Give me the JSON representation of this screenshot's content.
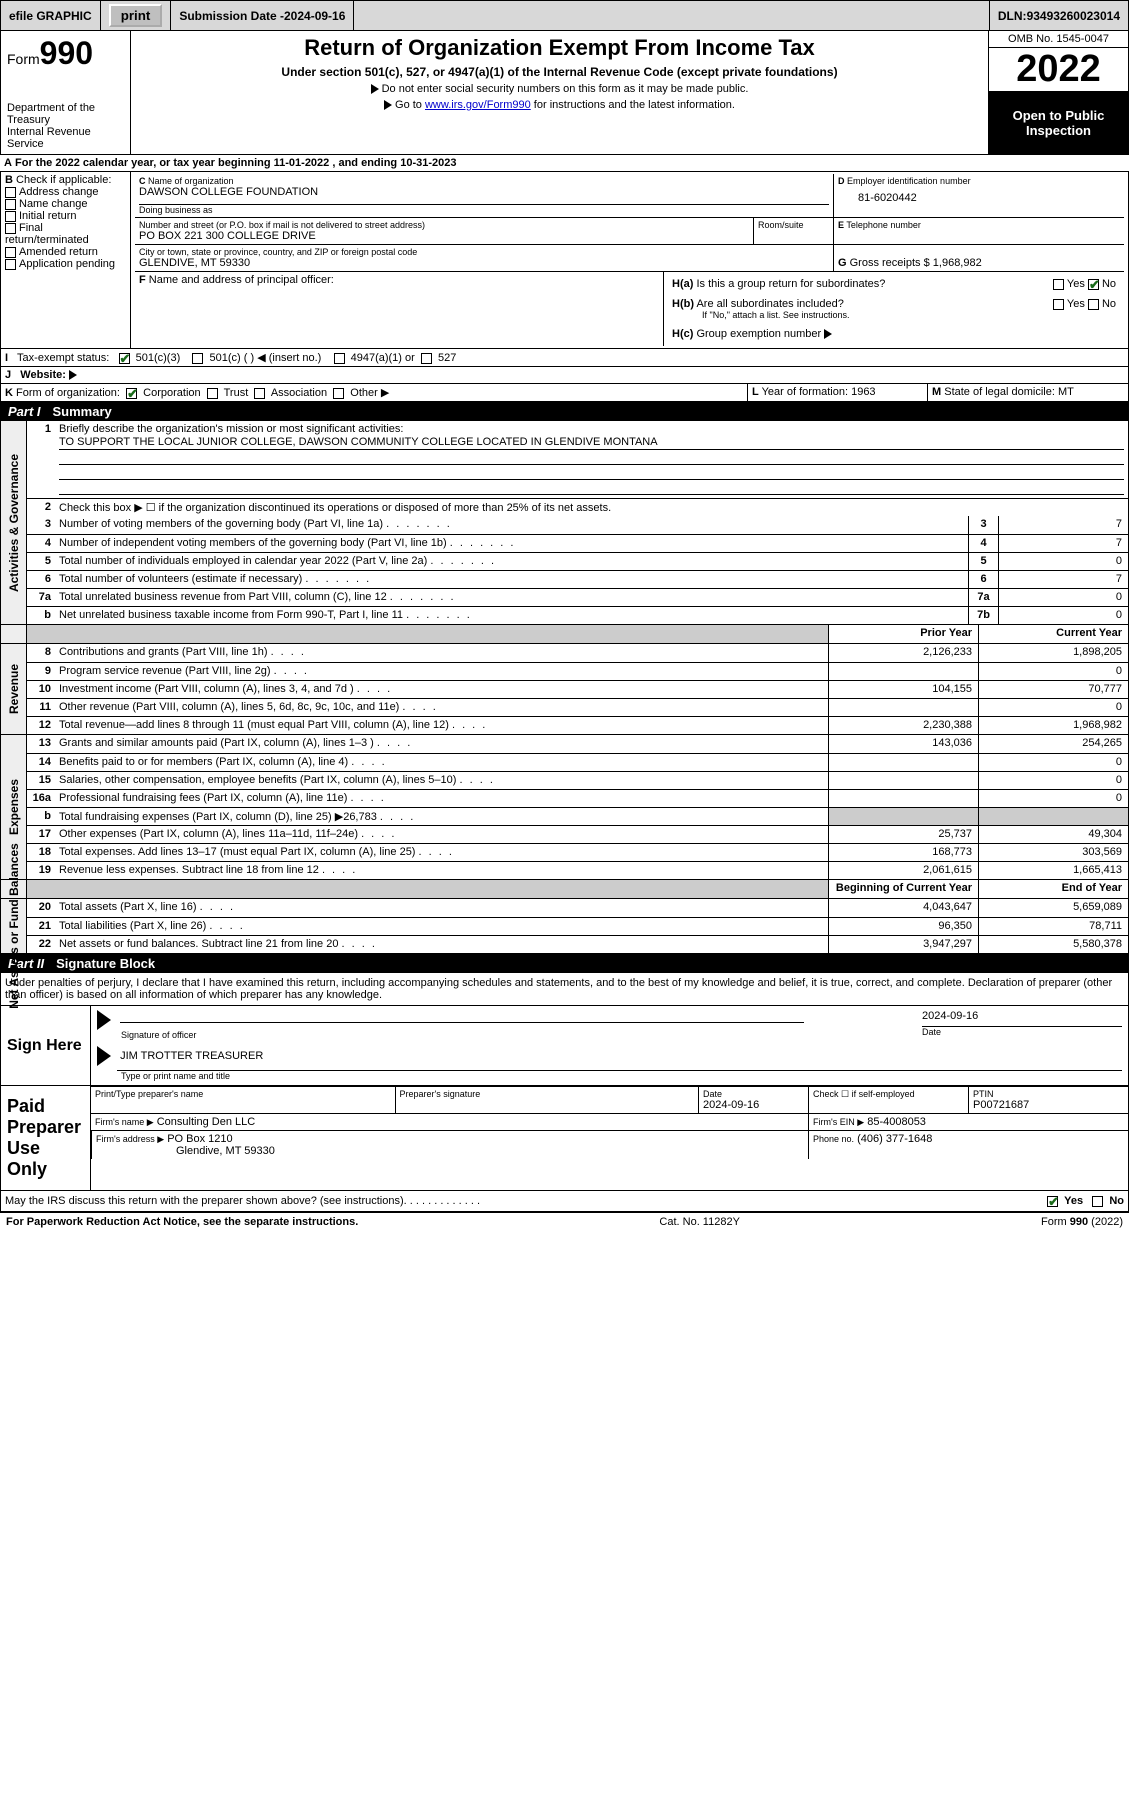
{
  "topbar": {
    "efile": "efile GRAPHIC",
    "print": "print",
    "submission_label": "Submission Date - ",
    "submission_date": "2024-09-16",
    "dln_label": "DLN: ",
    "dln": "93493260023014"
  },
  "header": {
    "form_word": "Form",
    "form_num": "990",
    "dept": "Department of the Treasury",
    "irs": "Internal Revenue Service",
    "title": "Return of Organization Exempt From Income Tax",
    "subtitle": "Under section 501(c), 527, or 4947(a)(1) of the Internal Revenue Code (except private foundations)",
    "note1": "Do not enter social security numbers on this form as it may be made public.",
    "note2_pre": "Go to ",
    "note2_link": "www.irs.gov/Form990",
    "note2_post": " for instructions and the latest information.",
    "omb": "OMB No. 1545-0047",
    "year": "2022",
    "open": "Open to Public Inspection"
  },
  "A": {
    "text_pre": "For the 2022 calendar year, or tax year beginning ",
    "begin": "11-01-2022",
    "mid": " , and ending ",
    "end": "10-31-2023"
  },
  "B": {
    "label": "Check if applicable:",
    "opts": [
      "Address change",
      "Name change",
      "Initial return",
      "Final return/terminated",
      "Amended return",
      "Application pending"
    ],
    "letter": "B"
  },
  "C": {
    "name_lbl": "Name of organization",
    "name": "DAWSON COLLEGE FOUNDATION",
    "dba_lbl": "Doing business as",
    "dba": "",
    "addr_lbl": "Number and street (or P.O. box if mail is not delivered to street address)",
    "addr": "PO BOX 221 300 COLLEGE DRIVE",
    "room_lbl": "Room/suite",
    "city_lbl": "City or town, state or province, country, and ZIP or foreign postal code",
    "city": "GLENDIVE, MT  59330",
    "letter": "C"
  },
  "D": {
    "label": "Employer identification number",
    "value": "81-6020442",
    "letter": "D"
  },
  "E": {
    "label": "Telephone number",
    "value": "",
    "letter": "E"
  },
  "F": {
    "label": "Name and address of principal officer:",
    "value": "",
    "letter": "F"
  },
  "G": {
    "label": "Gross receipts $",
    "value": "1,968,982",
    "letter": "G"
  },
  "H": {
    "a_label": "Is this a group return for subordinates?",
    "a_yes": "Yes",
    "a_no": "No",
    "a_val": "No",
    "b_label": "Are all subordinates included?",
    "b_note": "If \"No,\" attach a list. See instructions.",
    "c_label": "Group exemption number",
    "letter_a": "H(a)",
    "letter_b": "H(b)",
    "letter_c": "H(c)"
  },
  "I": {
    "label": "Tax-exempt status:",
    "opts": [
      "501(c)(3)",
      "501(c) (   )  ◀ (insert no.)",
      "4947(a)(1) or",
      "527"
    ],
    "checked": 0,
    "letter": "I"
  },
  "J": {
    "label": "Website:",
    "value": "",
    "letter": "J"
  },
  "K": {
    "label": "Form of organization:",
    "opts": [
      "Corporation",
      "Trust",
      "Association",
      "Other ▶"
    ],
    "checked": 0,
    "letter": "K"
  },
  "L": {
    "label": "Year of formation:",
    "value": "1963",
    "letter": "L"
  },
  "M": {
    "label": "State of legal domicile:",
    "value": "MT",
    "letter": "M"
  },
  "partI": {
    "num": "Part I",
    "title": "Summary"
  },
  "summary": {
    "line1_lbl": "Briefly describe the organization's mission or most significant activities:",
    "line1_val": "TO SUPPORT THE LOCAL JUNIOR COLLEGE, DAWSON COMMUNITY COLLEGE LOCATED IN GLENDIVE MONTANA",
    "line2": "Check this box ▶ ☐  if the organization discontinued its operations or disposed of more than 25% of its net assets.",
    "governance_rows": [
      {
        "n": "3",
        "d": "Number of voting members of the governing body (Part VI, line 1a)",
        "box": "3",
        "v": "7"
      },
      {
        "n": "4",
        "d": "Number of independent voting members of the governing body (Part VI, line 1b)",
        "box": "4",
        "v": "7"
      },
      {
        "n": "5",
        "d": "Total number of individuals employed in calendar year 2022 (Part V, line 2a)",
        "box": "5",
        "v": "0"
      },
      {
        "n": "6",
        "d": "Total number of volunteers (estimate if necessary)",
        "box": "6",
        "v": "7"
      },
      {
        "n": "7a",
        "d": "Total unrelated business revenue from Part VIII, column (C), line 12",
        "box": "7a",
        "v": "0"
      },
      {
        "n": "b",
        "d": "Net unrelated business taxable income from Form 990-T, Part I, line 11",
        "box": "7b",
        "v": "0"
      }
    ],
    "col_prior": "Prior Year",
    "col_current": "Current Year",
    "revenue_rows": [
      {
        "n": "8",
        "d": "Contributions and grants (Part VIII, line 1h)",
        "p": "2,126,233",
        "c": "1,898,205"
      },
      {
        "n": "9",
        "d": "Program service revenue (Part VIII, line 2g)",
        "p": "",
        "c": "0"
      },
      {
        "n": "10",
        "d": "Investment income (Part VIII, column (A), lines 3, 4, and 7d )",
        "p": "104,155",
        "c": "70,777"
      },
      {
        "n": "11",
        "d": "Other revenue (Part VIII, column (A), lines 5, 6d, 8c, 9c, 10c, and 11e)",
        "p": "",
        "c": "0"
      },
      {
        "n": "12",
        "d": "Total revenue—add lines 8 through 11 (must equal Part VIII, column (A), line 12)",
        "p": "2,230,388",
        "c": "1,968,982"
      }
    ],
    "expense_rows": [
      {
        "n": "13",
        "d": "Grants and similar amounts paid (Part IX, column (A), lines 1–3 )",
        "p": "143,036",
        "c": "254,265"
      },
      {
        "n": "14",
        "d": "Benefits paid to or for members (Part IX, column (A), line 4)",
        "p": "",
        "c": "0"
      },
      {
        "n": "15",
        "d": "Salaries, other compensation, employee benefits (Part IX, column (A), lines 5–10)",
        "p": "",
        "c": "0"
      },
      {
        "n": "16a",
        "d": "Professional fundraising fees (Part IX, column (A), line 11e)",
        "p": "",
        "c": "0"
      },
      {
        "n": "b",
        "d": "Total fundraising expenses (Part IX, column (D), line 25) ▶26,783",
        "p": "SHADE",
        "c": "SHADE"
      },
      {
        "n": "17",
        "d": "Other expenses (Part IX, column (A), lines 11a–11d, 11f–24e)",
        "p": "25,737",
        "c": "49,304"
      },
      {
        "n": "18",
        "d": "Total expenses. Add lines 13–17 (must equal Part IX, column (A), line 25)",
        "p": "168,773",
        "c": "303,569"
      },
      {
        "n": "19",
        "d": "Revenue less expenses. Subtract line 18 from line 12",
        "p": "2,061,615",
        "c": "1,665,413"
      }
    ],
    "col_begin": "Beginning of Current Year",
    "col_end": "End of Year",
    "net_rows": [
      {
        "n": "20",
        "d": "Total assets (Part X, line 16)",
        "p": "4,043,647",
        "c": "5,659,089"
      },
      {
        "n": "21",
        "d": "Total liabilities (Part X, line 26)",
        "p": "96,350",
        "c": "78,711"
      },
      {
        "n": "22",
        "d": "Net assets or fund balances. Subtract line 21 from line 20",
        "p": "3,947,297",
        "c": "5,580,378"
      }
    ],
    "vlabels": {
      "gov": "Activities & Governance",
      "rev": "Revenue",
      "exp": "Expenses",
      "net": "Net Assets or Fund Balances"
    }
  },
  "partII": {
    "num": "Part II",
    "title": "Signature Block"
  },
  "sig": {
    "perjury": "Under penalties of perjury, I declare that I have examined this return, including accompanying schedules and statements, and to the best of my knowledge and belief, it is true, correct, and complete. Declaration of preparer (other than officer) is based on all information of which preparer has any knowledge.",
    "sign_here": "Sign Here",
    "officer_sig_lbl": "Signature of officer",
    "date_lbl": "Date",
    "officer_date": "2024-09-16",
    "officer_name": "JIM TROTTER TREASURER",
    "officer_name_lbl": "Type or print name and title",
    "paid": "Paid Preparer Use Only",
    "prep_name_lbl": "Print/Type preparer's name",
    "prep_name": "",
    "prep_sig_lbl": "Preparer's signature",
    "prep_date_lbl": "Date",
    "prep_date": "2024-09-16",
    "self_lbl": "Check ☐ if self-employed",
    "ptin_lbl": "PTIN",
    "ptin": "P00721687",
    "firm_name_lbl": "Firm's name   ▶",
    "firm_name": "Consulting Den LLC",
    "firm_ein_lbl": "Firm's EIN ▶",
    "firm_ein": "85-4008053",
    "firm_addr_lbl": "Firm's address ▶",
    "firm_addr1": "PO Box 1210",
    "firm_addr2": "Glendive, MT  59330",
    "phone_lbl": "Phone no.",
    "phone": "(406) 377-1648",
    "discuss": "May the IRS discuss this return with the preparer shown above? (see instructions)",
    "discuss_yes": "Yes",
    "discuss_no": "No",
    "discuss_val": "Yes"
  },
  "footer": {
    "pra": "For Paperwork Reduction Act Notice, see the separate instructions.",
    "cat": "Cat. No. 11282Y",
    "form": "Form 990 (2022)"
  }
}
